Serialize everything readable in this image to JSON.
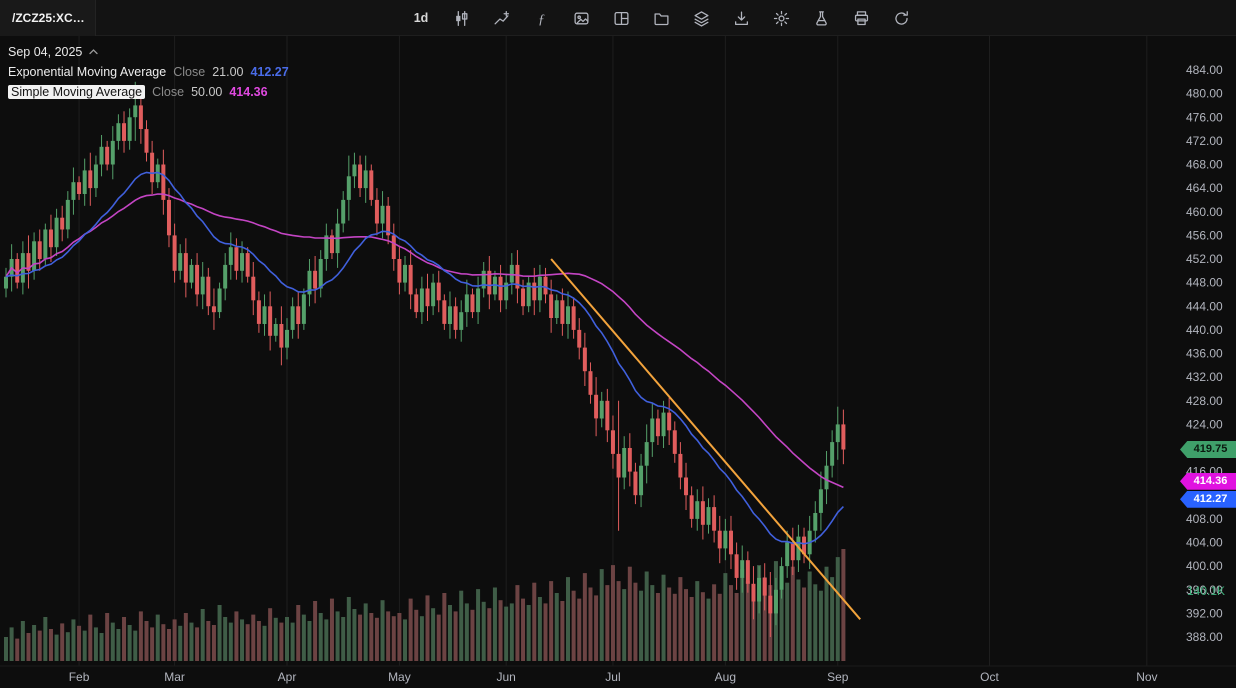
{
  "toolbar": {
    "symbol": "/ZCZ25:XC…",
    "timeframe": "1d",
    "icons": [
      "candlesticks",
      "trendline",
      "function",
      "photo",
      "layout",
      "folder",
      "layers",
      "download",
      "settings",
      "beaker",
      "print",
      "refresh"
    ]
  },
  "legend": {
    "date": "Sep 04, 2025",
    "indicators": [
      {
        "name": "Exponential Moving Average",
        "source": "Close",
        "param": "21.00",
        "value": "412.27",
        "color": "#4a6ce8",
        "selected": false
      },
      {
        "name": "Simple Moving Average",
        "source": "Close",
        "param": "50.00",
        "value": "414.36",
        "color": "#e049e0",
        "selected": true
      }
    ]
  },
  "price_axis": {
    "ticks": [
      484,
      480,
      476,
      472,
      468,
      464,
      460,
      456,
      452,
      448,
      444,
      440,
      436,
      432,
      428,
      424,
      420,
      416,
      412,
      408,
      404,
      400,
      396,
      392,
      388
    ],
    "badges": [
      {
        "label": "419.75",
        "price": 419.75,
        "bg": "#3fa06a",
        "fg": "#0b1a10"
      },
      {
        "label": "414.36",
        "price": 414.36,
        "bg": "#e012e0",
        "fg": "#ffffff"
      },
      {
        "label": "412.27",
        "price": 412.27,
        "bg": "#2962ff",
        "fg": "#ffffff"
      }
    ],
    "volume_label": {
      "text": "140.1K",
      "color": "#3fae7a"
    }
  },
  "time_axis": {
    "months": [
      {
        "label": "Feb",
        "index": 13
      },
      {
        "label": "Mar",
        "index": 30
      },
      {
        "label": "Apr",
        "index": 50
      },
      {
        "label": "May",
        "index": 70
      },
      {
        "label": "Jun",
        "index": 89
      },
      {
        "label": "Jul",
        "index": 108
      },
      {
        "label": "Aug",
        "index": 128
      },
      {
        "label": "Sep",
        "index": 148
      },
      {
        "label": "Oct",
        "index": 175
      },
      {
        "label": "Nov",
        "index": 203
      }
    ]
  },
  "chart_data": {
    "type": "candlestick",
    "symbol": "/ZCZ25:XC",
    "interval": "1d",
    "y_range": [
      388,
      484
    ],
    "first_open": 447,
    "closes": [
      449,
      452,
      448,
      453,
      450,
      455,
      452,
      457,
      454,
      459,
      457,
      462,
      465,
      463,
      467,
      464,
      468,
      471,
      468,
      472,
      475,
      472,
      476,
      478,
      474,
      470,
      465,
      468,
      462,
      456,
      450,
      453,
      448,
      451,
      446,
      449,
      444,
      443,
      447,
      451,
      454,
      450,
      453,
      449,
      445,
      441,
      444,
      439,
      441,
      437,
      440,
      444,
      441,
      446,
      450,
      447,
      452,
      456,
      453,
      458,
      462,
      466,
      468,
      464,
      467,
      462,
      458,
      461,
      456,
      452,
      448,
      451,
      446,
      443,
      447,
      444,
      448,
      445,
      441,
      444,
      440,
      443,
      446,
      443,
      447,
      450,
      446,
      449,
      445,
      448,
      451,
      447,
      444,
      448,
      445,
      449,
      446,
      442,
      445,
      441,
      444,
      440,
      437,
      433,
      429,
      425,
      428,
      423,
      419,
      415,
      420,
      416,
      412,
      417,
      421,
      425,
      422,
      426,
      423,
      419,
      415,
      412,
      408,
      411,
      407,
      410,
      406,
      403,
      406,
      402,
      398,
      401,
      397,
      394,
      398,
      395,
      392,
      396,
      400,
      404,
      401,
      405,
      402,
      406,
      409,
      413,
      417,
      421,
      424,
      419.75
    ],
    "wicks": [
      1.5,
      2.5,
      1,
      2,
      3,
      1.5,
      2,
      1,
      2.5,
      1.5,
      2,
      1.5,
      2.5,
      1,
      2,
      3,
      1.5,
      2,
      1,
      2.5,
      1.5,
      2,
      1.5,
      4,
      2.5,
      1.5,
      2,
      1,
      2.5,
      2,
      2,
      1.5,
      2.5,
      1,
      2,
      2.5,
      1.5,
      3,
      1,
      2,
      2.5,
      1.5,
      2,
      1,
      2.5,
      1.5,
      2,
      2.5,
      1,
      3,
      2,
      1.5,
      2.5,
      1,
      2,
      2.5,
      1.5,
      2,
      1,
      2.5,
      1.5,
      3.5,
      2,
      1.5,
      2.5,
      1,
      2,
      2.5,
      1.5,
      2,
      2,
      1.5,
      2.5,
      1,
      2,
      2.5,
      1.5,
      2,
      1,
      2.5,
      1.5,
      2,
      2.5,
      1,
      2,
      1.5,
      2.5,
      1,
      2,
      1.5,
      2,
      2.5,
      1.5,
      1,
      2.5,
      2,
      1.5,
      2.5,
      1,
      2,
      2.5,
      1.5,
      2,
      2.5,
      1.5,
      3,
      1.5,
      2,
      2.5,
      9,
      2,
      2.5,
      1.5,
      2,
      3,
      2.5,
      1.5,
      2,
      2.5,
      1.5,
      2,
      2.5,
      1.5,
      2,
      2.5,
      1.5,
      2,
      2.5,
      2,
      2.5,
      2,
      2.5,
      1.5,
      3,
      2,
      2.5,
      4,
      2,
      1.5,
      2,
      2.5,
      2,
      1.5,
      2.5,
      2,
      3,
      2.5,
      2,
      3,
      2.5
    ],
    "volumes": [
      30,
      42,
      28,
      50,
      35,
      45,
      38,
      55,
      40,
      33,
      47,
      36,
      52,
      44,
      38,
      58,
      42,
      35,
      60,
      48,
      40,
      55,
      45,
      38,
      62,
      50,
      42,
      58,
      46,
      40,
      52,
      44,
      60,
      48,
      42,
      65,
      50,
      45,
      70,
      55,
      48,
      62,
      52,
      46,
      58,
      50,
      44,
      66,
      54,
      48,
      55,
      48,
      70,
      58,
      50,
      75,
      60,
      52,
      78,
      62,
      55,
      80,
      65,
      58,
      72,
      60,
      54,
      76,
      62,
      56,
      60,
      52,
      78,
      64,
      56,
      82,
      66,
      58,
      85,
      70,
      62,
      88,
      72,
      64,
      90,
      74,
      66,
      92,
      76,
      68,
      72,
      95,
      78,
      70,
      98,
      80,
      72,
      100,
      85,
      75,
      105,
      88,
      78,
      110,
      92,
      82,
      115,
      95,
      120,
      100,
      90,
      118,
      98,
      88,
      112,
      95,
      85,
      108,
      92,
      84,
      105,
      90,
      80,
      100,
      86,
      78,
      96,
      84,
      110,
      95,
      85,
      115,
      100,
      90,
      120,
      105,
      95,
      125,
      108,
      98,
      118,
      102,
      92,
      112,
      96,
      88,
      118,
      105,
      130,
      140.1
    ],
    "overlays": [
      {
        "name": "EMA",
        "period": 21,
        "color": "#4060dd"
      },
      {
        "name": "SMA",
        "period": 50,
        "color": "#c445c4"
      }
    ],
    "annotations": [
      {
        "type": "trendline",
        "from": {
          "index": 97,
          "price": 452
        },
        "to": {
          "index": 152,
          "price": 391
        },
        "color": "#f2a33c",
        "width": 2
      }
    ],
    "colors": {
      "up": "#55a06a",
      "down": "#e05d5d",
      "vol_up": "#3f5d47",
      "vol_down": "#6c4343"
    }
  }
}
